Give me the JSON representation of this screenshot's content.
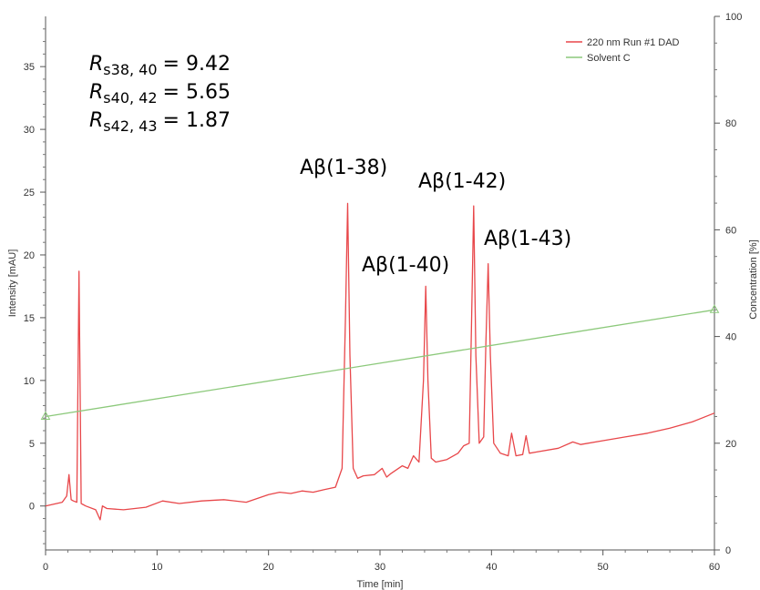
{
  "chart_data": {
    "type": "line",
    "xlabel": "Time [min]",
    "ylabel": "Intensity [mAU]",
    "y2label": "Concentration [%]",
    "xlim": [
      0,
      60
    ],
    "ylim": [
      -3.5,
      39
    ],
    "y2lim": [
      0,
      100
    ],
    "x_ticks": [
      0,
      10,
      20,
      30,
      40,
      50,
      60
    ],
    "y_ticks": [
      0,
      5,
      10,
      15,
      20,
      25,
      30,
      35
    ],
    "y2_ticks": [
      0,
      20,
      40,
      60,
      80,
      100
    ],
    "grid": false,
    "legend_position": "top-right",
    "legend": [
      {
        "label": "220 nm Run #1 DAD",
        "color": "#e8474a"
      },
      {
        "label": "Solvent C",
        "color": "#8cc97b"
      }
    ],
    "series": [
      {
        "name": "220 nm Run #1 DAD",
        "color": "#e8474a",
        "axis": "left",
        "x": [
          0,
          1.5,
          1.9,
          2.1,
          2.3,
          2.5,
          2.8,
          3.0,
          3.2,
          3.6,
          4.5,
          4.9,
          5.1,
          5.5,
          7,
          9,
          10.5,
          12,
          14,
          16,
          18,
          20,
          21,
          22,
          23,
          24,
          25,
          26,
          26.6,
          26.9,
          27.1,
          27.3,
          27.6,
          28,
          28.5,
          29.5,
          30.2,
          30.6,
          31,
          32,
          32.5,
          33,
          33.5,
          33.9,
          34.1,
          34.3,
          34.6,
          35,
          36,
          37,
          37.5,
          38,
          38.2,
          38.4,
          38.6,
          38.9,
          39.3,
          39.5,
          39.7,
          39.9,
          40.2,
          40.8,
          41.5,
          41.8,
          42.2,
          42.8,
          43.1,
          43.4,
          44,
          46,
          47.3,
          48,
          50,
          52,
          54,
          56,
          58,
          60
        ],
        "values": [
          0,
          0.3,
          0.8,
          2.5,
          0.5,
          0.4,
          0.3,
          18.7,
          0.2,
          0,
          -0.3,
          -1.1,
          0,
          -0.2,
          -0.3,
          -0.1,
          0.4,
          0.2,
          0.4,
          0.5,
          0.3,
          0.9,
          1.1,
          1.0,
          1.2,
          1.1,
          1.3,
          1.5,
          3.0,
          15,
          24.1,
          12,
          3,
          2.2,
          2.4,
          2.5,
          3.0,
          2.3,
          2.6,
          3.2,
          3.0,
          4.0,
          3.5,
          10,
          17.5,
          10,
          3.8,
          3.5,
          3.7,
          4.2,
          4.8,
          5.0,
          14,
          23.9,
          12,
          5,
          5.5,
          13,
          19.3,
          12,
          5,
          4.2,
          4.0,
          5.8,
          4.0,
          4.1,
          5.6,
          4.2,
          4.3,
          4.6,
          5.1,
          4.9,
          5.2,
          5.5,
          5.8,
          6.2,
          6.7,
          7.4
        ]
      },
      {
        "name": "Solvent C",
        "color": "#8cc97b",
        "axis": "right",
        "x": [
          0,
          60
        ],
        "values": [
          25,
          45
        ]
      }
    ],
    "annotations": {
      "peaks": [
        {
          "label": "Aβ(1-38)",
          "x": 27.1,
          "y": 24.1
        },
        {
          "label": "Aβ(1-40)",
          "x": 34.1,
          "y": 17.5
        },
        {
          "label": "Aβ(1-42)",
          "x": 38.4,
          "y": 23.9
        },
        {
          "label": "Aβ(1-43)",
          "x": 39.7,
          "y": 19.3
        }
      ],
      "resolution": [
        {
          "R": "R",
          "sub": "s38, 40",
          "value": "= 9.42"
        },
        {
          "R": "R",
          "sub": "s40, 42",
          "value": "= 5.65"
        },
        {
          "R": "R",
          "sub": "s42, 43",
          "value": "= 1.87"
        }
      ]
    }
  }
}
